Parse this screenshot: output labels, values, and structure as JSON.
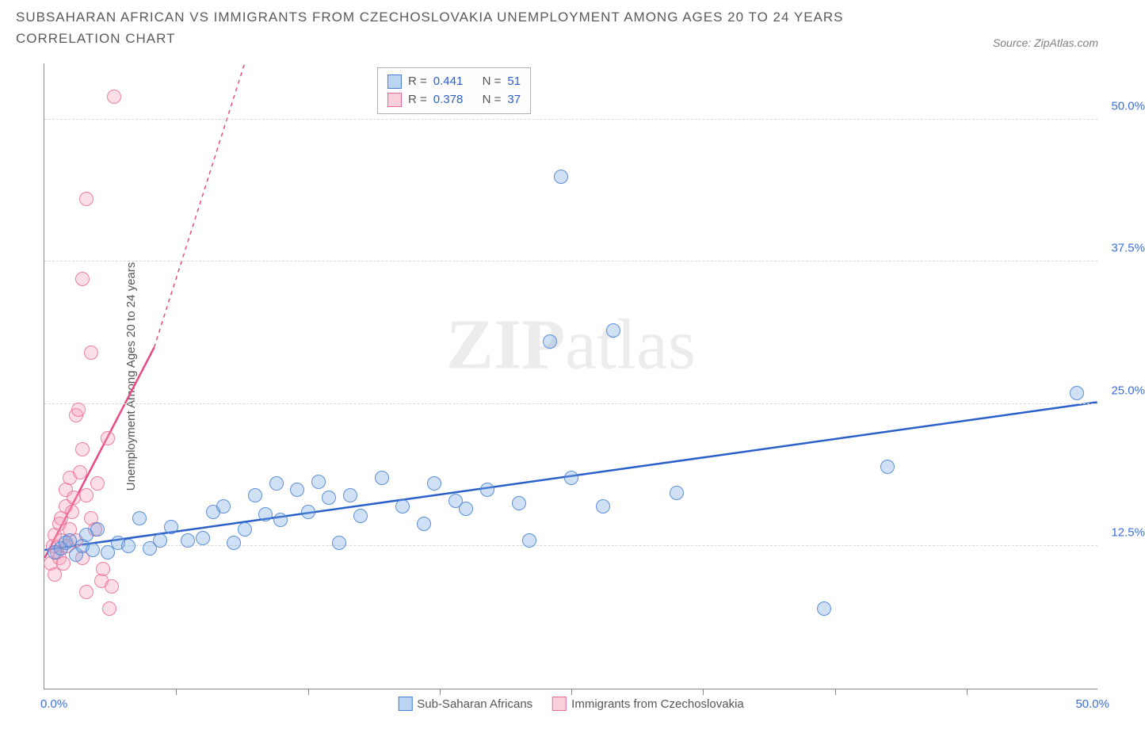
{
  "title": "SUBSAHARAN AFRICAN VS IMMIGRANTS FROM CZECHOSLOVAKIA UNEMPLOYMENT AMONG AGES 20 TO 24 YEARS CORRELATION CHART",
  "source_label": "Source: ZipAtlas.com",
  "yaxis_label": "Unemployment Among Ages 20 to 24 years",
  "watermark_bold": "ZIP",
  "watermark_light": "atlas",
  "chart": {
    "type": "scatter",
    "xlim": [
      0,
      50
    ],
    "ylim": [
      0,
      55
    ],
    "x_start_label": "0.0%",
    "x_end_label": "50.0%",
    "y_ticks": [
      {
        "value": 12.5,
        "label": "12.5%"
      },
      {
        "value": 25.0,
        "label": "25.0%"
      },
      {
        "value": 37.5,
        "label": "37.5%"
      },
      {
        "value": 50.0,
        "label": "50.0%"
      }
    ],
    "x_ticks": [
      6.25,
      12.5,
      18.75,
      25,
      31.25,
      37.5,
      43.75
    ],
    "background_color": "#ffffff",
    "grid_color": "#d8d8d8",
    "marker_radius": 9,
    "series": [
      {
        "name": "Sub-Saharan Africans",
        "color_fill": "rgba(120,170,230,0.35)",
        "color_stroke": "#4a7dd0",
        "r_label": "R = ",
        "r_value": "0.441",
        "n_label": "N = ",
        "n_value": "51",
        "trend": {
          "x1": 0,
          "y1": 12.2,
          "x2": 50,
          "y2": 25.2,
          "color": "#2a5fc9",
          "width": 2.5,
          "dash_extend": false
        },
        "points": [
          [
            0.5,
            12.0
          ],
          [
            0.8,
            12.3
          ],
          [
            1.0,
            12.8
          ],
          [
            1.2,
            13.0
          ],
          [
            1.5,
            11.8
          ],
          [
            1.8,
            12.5
          ],
          [
            2.0,
            13.5
          ],
          [
            2.3,
            12.2
          ],
          [
            2.5,
            14.0
          ],
          [
            3.0,
            12.0
          ],
          [
            3.5,
            12.8
          ],
          [
            4.0,
            12.5
          ],
          [
            4.5,
            15.0
          ],
          [
            5.0,
            12.3
          ],
          [
            5.5,
            13.0
          ],
          [
            6.0,
            14.2
          ],
          [
            6.8,
            13.0
          ],
          [
            7.5,
            13.2
          ],
          [
            8.0,
            15.5
          ],
          [
            8.5,
            16.0
          ],
          [
            9.0,
            12.8
          ],
          [
            9.5,
            14.0
          ],
          [
            10.0,
            17.0
          ],
          [
            10.5,
            15.3
          ],
          [
            11.0,
            18.0
          ],
          [
            11.2,
            14.8
          ],
          [
            12.0,
            17.5
          ],
          [
            12.5,
            15.5
          ],
          [
            13.0,
            18.2
          ],
          [
            13.5,
            16.8
          ],
          [
            14.0,
            12.8
          ],
          [
            14.5,
            17.0
          ],
          [
            15.0,
            15.2
          ],
          [
            16.0,
            18.5
          ],
          [
            17.0,
            16.0
          ],
          [
            18.0,
            14.5
          ],
          [
            18.5,
            18.0
          ],
          [
            19.5,
            16.5
          ],
          [
            20.0,
            15.8
          ],
          [
            21.0,
            17.5
          ],
          [
            22.5,
            16.3
          ],
          [
            23.0,
            13.0
          ],
          [
            24.0,
            30.5
          ],
          [
            24.5,
            45.0
          ],
          [
            25.0,
            18.5
          ],
          [
            26.5,
            16.0
          ],
          [
            27.0,
            31.5
          ],
          [
            30.0,
            17.2
          ],
          [
            37.0,
            7.0
          ],
          [
            40.0,
            19.5
          ],
          [
            49.0,
            26.0
          ]
        ]
      },
      {
        "name": "Immigrants from Czechoslovakia",
        "color_fill": "rgba(245,160,185,0.35)",
        "color_stroke": "#e06a95",
        "r_label": "R = ",
        "r_value": "0.378",
        "n_label": "N = ",
        "n_value": "37",
        "trend": {
          "x1": 0,
          "y1": 11.5,
          "x2": 5.2,
          "y2": 30.0,
          "color": "#e84a85",
          "width": 2.5,
          "dash_extend": true,
          "dash_x2": 9.5,
          "dash_y2": 55
        },
        "points": [
          [
            0.3,
            11.0
          ],
          [
            0.4,
            12.5
          ],
          [
            0.5,
            13.5
          ],
          [
            0.5,
            10.0
          ],
          [
            0.6,
            12.0
          ],
          [
            0.7,
            14.5
          ],
          [
            0.7,
            11.5
          ],
          [
            0.8,
            13.0
          ],
          [
            0.8,
            15.0
          ],
          [
            0.9,
            11.0
          ],
          [
            1.0,
            16.0
          ],
          [
            1.0,
            17.5
          ],
          [
            1.1,
            12.5
          ],
          [
            1.2,
            14.0
          ],
          [
            1.2,
            18.5
          ],
          [
            1.3,
            15.5
          ],
          [
            1.4,
            16.8
          ],
          [
            1.5,
            13.0
          ],
          [
            1.5,
            24.0
          ],
          [
            1.6,
            24.5
          ],
          [
            1.7,
            19.0
          ],
          [
            1.8,
            21.0
          ],
          [
            1.8,
            11.5
          ],
          [
            2.0,
            17.0
          ],
          [
            2.0,
            8.5
          ],
          [
            2.2,
            15.0
          ],
          [
            2.2,
            29.5
          ],
          [
            2.4,
            14.0
          ],
          [
            2.5,
            18.0
          ],
          [
            2.7,
            9.5
          ],
          [
            1.8,
            36.0
          ],
          [
            2.0,
            43.0
          ],
          [
            2.8,
            10.5
          ],
          [
            3.0,
            22.0
          ],
          [
            3.1,
            7.0
          ],
          [
            3.2,
            9.0
          ],
          [
            3.3,
            52.0
          ]
        ]
      }
    ]
  }
}
